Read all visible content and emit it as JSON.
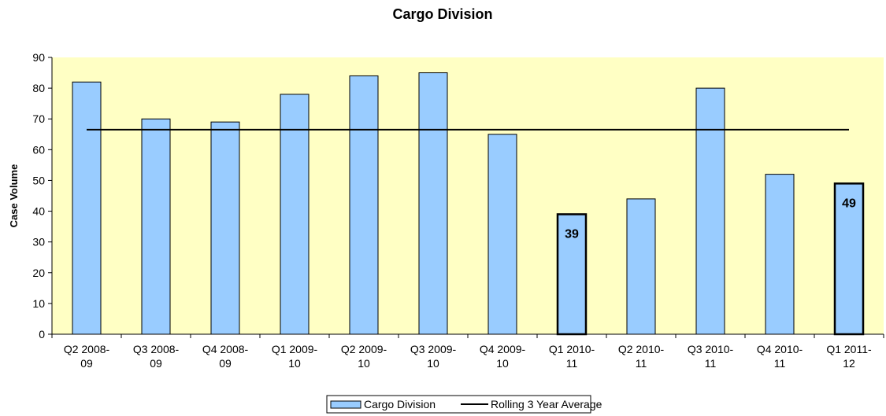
{
  "chart_data": {
    "type": "bar",
    "title": "Cargo Division",
    "ylabel": "Case Volume",
    "categories": [
      "Q2 2008-09",
      "Q3 2008-09",
      "Q4 2008-09",
      "Q1 2009-10",
      "Q2 2009-10",
      "Q3 2009-10",
      "Q4 2009-10",
      "Q1 2010-11",
      "Q2 2010-11",
      "Q3 2010-11",
      "Q4 2010-11",
      "Q1 2011-12"
    ],
    "series": [
      {
        "name": "Cargo Division",
        "type": "bar",
        "color": "#99ccff",
        "values": [
          82,
          70,
          69,
          78,
          84,
          85,
          65,
          39,
          44,
          80,
          52,
          49
        ]
      },
      {
        "name": "Rolling 3 Year Average",
        "type": "line",
        "color": "#000000",
        "values": [
          66.5,
          66.5,
          66.5,
          66.5,
          66.5,
          66.5,
          66.5,
          66.5,
          66.5,
          66.5,
          66.5,
          66.5
        ]
      }
    ],
    "highlight": [
      7,
      11
    ],
    "ylim": [
      0,
      90
    ],
    "yticks": [
      0,
      10,
      20,
      30,
      40,
      50,
      60,
      70,
      80,
      90
    ],
    "plot_background": "#ffffc4",
    "legend": "bottom"
  }
}
